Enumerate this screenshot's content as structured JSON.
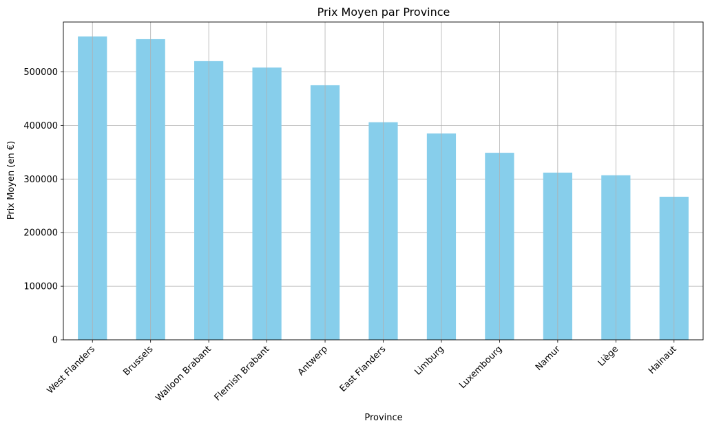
{
  "chart_data": {
    "type": "bar",
    "title": "Prix Moyen par Province",
    "xlabel": "Province",
    "ylabel": "Prix Moyen (en €)",
    "categories": [
      "West Flanders",
      "Brussels",
      "Walloon Brabant",
      "Flemish Brabant",
      "Antwerp",
      "East Flanders",
      "Limburg",
      "Luxembourg",
      "Namur",
      "Liège",
      "Hainaut"
    ],
    "values": [
      566000,
      561000,
      520000,
      508000,
      475000,
      406000,
      385000,
      349000,
      312000,
      307000,
      267000
    ],
    "yticks": [
      0,
      100000,
      200000,
      300000,
      400000,
      500000
    ],
    "ylim": [
      0,
      593000
    ],
    "grid": true,
    "bar_color": "#87ceeb",
    "grid_color": "#b0b0b0",
    "tick_label_rotation": 45
  }
}
